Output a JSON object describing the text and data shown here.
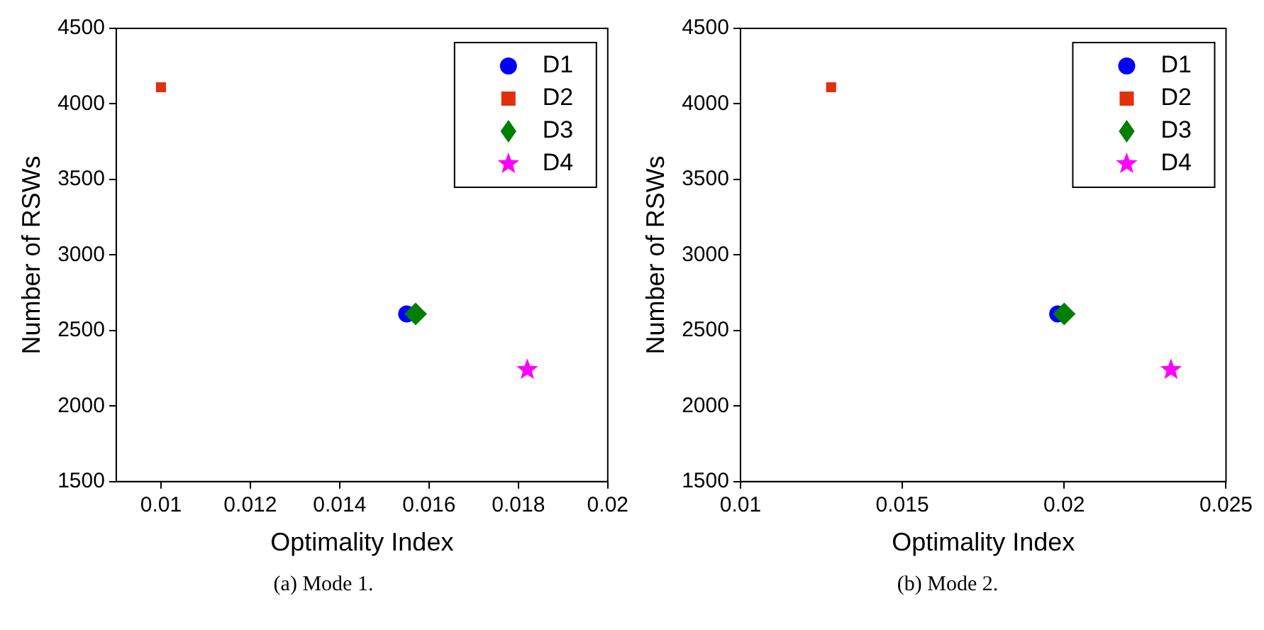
{
  "chart_data": [
    {
      "type": "scatter",
      "xlabel": "Optimality Index",
      "ylabel": "Number of RSWs",
      "annotations": [
        "(a) Mode 1."
      ],
      "xlim": [
        0.009,
        0.02
      ],
      "xticks": [
        0.01,
        0.012,
        0.014,
        0.016,
        0.018,
        0.02
      ],
      "ylim": [
        1500,
        4500
      ],
      "yticks": [
        1500,
        2000,
        2500,
        3000,
        3500,
        4000,
        4500
      ],
      "legend": "top right",
      "grid": false,
      "series": [
        {
          "name": "D1",
          "color": "#0000ff",
          "marker": "circle",
          "x": [
            0.0155
          ],
          "values": [
            2610
          ]
        },
        {
          "name": "D2",
          "color": "#e0300e",
          "marker": "square",
          "x": [
            0.01
          ],
          "values": [
            4110
          ]
        },
        {
          "name": "D3",
          "color": "#007f00",
          "marker": "diamond",
          "x": [
            0.0157
          ],
          "values": [
            2610
          ]
        },
        {
          "name": "D4",
          "color": "#ff00ff",
          "marker": "star",
          "x": [
            0.0182
          ],
          "values": [
            2240
          ]
        }
      ]
    },
    {
      "type": "scatter",
      "xlabel": "Optimality Index",
      "ylabel": "Number of RSWs",
      "annotations": [
        "(b) Mode 2."
      ],
      "xlim": [
        0.01,
        0.025
      ],
      "xticks": [
        0.01,
        0.015,
        0.02,
        0.025
      ],
      "ylim": [
        1500,
        4500
      ],
      "yticks": [
        1500,
        2000,
        2500,
        3000,
        3500,
        4000,
        4500
      ],
      "legend": "top right",
      "grid": false,
      "series": [
        {
          "name": "D1",
          "color": "#0000ff",
          "marker": "circle",
          "x": [
            0.0198
          ],
          "values": [
            2610
          ]
        },
        {
          "name": "D2",
          "color": "#e0300e",
          "marker": "square",
          "x": [
            0.0128
          ],
          "values": [
            4110
          ]
        },
        {
          "name": "D3",
          "color": "#007f00",
          "marker": "diamond",
          "x": [
            0.02
          ],
          "values": [
            2610
          ]
        },
        {
          "name": "D4",
          "color": "#ff00ff",
          "marker": "star",
          "x": [
            0.0233
          ],
          "values": [
            2240
          ]
        }
      ]
    }
  ]
}
